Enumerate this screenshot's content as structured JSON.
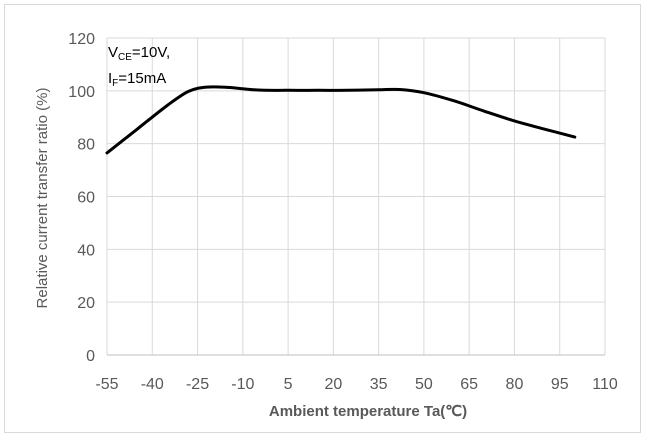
{
  "chart_data": {
    "type": "line",
    "title": "",
    "xlabel": "Ambient temperature Ta(℃)",
    "ylabel": "Relative current transfer ratio (%)",
    "xlim": [
      -55,
      110
    ],
    "ylim": [
      0,
      120
    ],
    "x_ticks": [
      -55,
      -40,
      -25,
      -10,
      5,
      20,
      35,
      50,
      65,
      80,
      95,
      110
    ],
    "y_ticks": [
      0,
      20,
      40,
      60,
      80,
      100,
      120
    ],
    "grid": true,
    "annotation": {
      "line1_main": "V",
      "line1_sub": "CE",
      "line1_rest": "=10V,",
      "line2_main": "I",
      "line2_sub": "F",
      "line2_rest": "=15mA"
    },
    "series": [
      {
        "color": "#000000",
        "x": [
          -55,
          -45,
          -35,
          -28,
          -22,
          -15,
          -5,
          5,
          15,
          25,
          35,
          42,
          50,
          60,
          70,
          80,
          90,
          100
        ],
        "y": [
          76.5,
          85.5,
          94.5,
          99.8,
          101.4,
          101.3,
          100.3,
          100.2,
          100.2,
          100.2,
          100.4,
          100.5,
          99.3,
          96.2,
          92.3,
          88.6,
          85.5,
          82.5
        ]
      }
    ]
  }
}
